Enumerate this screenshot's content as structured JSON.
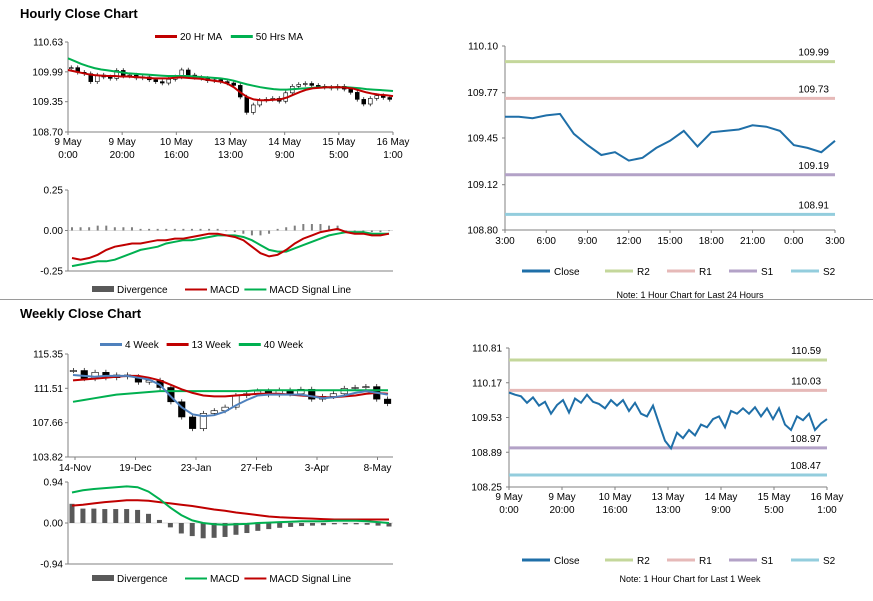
{
  "sections": {
    "hourly_title": "Hourly Close Chart",
    "weekly_title": "Weekly Close Chart"
  },
  "colors": {
    "ma_short": "#c00000",
    "ma_long": "#00b050",
    "ma_4wk": "#4f81bd",
    "close": "#1f6fa8",
    "r2": "#c4d79b",
    "r1": "#e6b9b8",
    "s1": "#b3a2c7",
    "s2": "#93cddd",
    "macd_red": "#c00000",
    "macd_green": "#00b050",
    "divergence": "#595959"
  },
  "chart_data": [
    {
      "id": "hourly_price",
      "type": "candlestick",
      "title": "Hourly Close Chart",
      "ylim": [
        108.7,
        110.63
      ],
      "yticks": [
        "110.63",
        "109.99",
        "109.35",
        "108.70"
      ],
      "xticks": [
        [
          "9 May",
          "0:00"
        ],
        [
          "9 May",
          "20:00"
        ],
        [
          "10 May",
          "16:00"
        ],
        [
          "13 May",
          "13:00"
        ],
        [
          "14 May",
          "9:00"
        ],
        [
          "15 May",
          "5:00"
        ],
        [
          "16 May",
          "1:00"
        ]
      ],
      "legend": [
        "20 Hr MA",
        "50 Hrs MA"
      ],
      "close": [
        110.08,
        109.98,
        109.95,
        109.78,
        109.92,
        109.88,
        109.85,
        110.02,
        109.9,
        109.92,
        109.86,
        109.88,
        109.82,
        109.78,
        109.75,
        109.83,
        109.88,
        110.03,
        109.92,
        109.87,
        109.85,
        109.8,
        109.82,
        109.78,
        109.75,
        109.7,
        109.45,
        109.12,
        109.28,
        109.38,
        109.4,
        109.42,
        109.36,
        109.54,
        109.68,
        109.72,
        109.74,
        109.7,
        109.68,
        109.66,
        109.64,
        109.68,
        109.62,
        109.55,
        109.4,
        109.3,
        109.42,
        109.48,
        109.44,
        109.4
      ],
      "ma20": [
        110.03,
        110.0,
        109.97,
        109.94,
        109.92,
        109.91,
        109.9,
        109.9,
        109.89,
        109.89,
        109.88,
        109.87,
        109.86,
        109.85,
        109.85,
        109.85,
        109.86,
        109.87,
        109.86,
        109.85,
        109.84,
        109.82,
        109.8,
        109.78,
        109.74,
        109.66,
        109.55,
        109.45,
        109.4,
        109.38,
        109.38,
        109.39,
        109.4,
        109.44,
        109.5,
        109.56,
        109.61,
        109.64,
        109.65,
        109.66,
        109.66,
        109.66,
        109.65,
        109.63,
        109.59,
        109.55,
        109.52,
        109.5,
        109.49,
        109.47
      ],
      "ma50": [
        110.28,
        110.22,
        110.16,
        110.11,
        110.07,
        110.04,
        110.02,
        110.0,
        109.98,
        109.96,
        109.95,
        109.94,
        109.93,
        109.92,
        109.91,
        109.9,
        109.9,
        109.9,
        109.9,
        109.89,
        109.88,
        109.87,
        109.86,
        109.85,
        109.83,
        109.8,
        109.76,
        109.72,
        109.69,
        109.66,
        109.64,
        109.62,
        109.61,
        109.61,
        109.62,
        109.63,
        109.64,
        109.65,
        109.66,
        109.66,
        109.66,
        109.66,
        109.66,
        109.65,
        109.64,
        109.62,
        109.61,
        109.6,
        109.59,
        109.58
      ]
    },
    {
      "id": "hourly_macd",
      "type": "macd",
      "ylim": [
        -0.25,
        0.25
      ],
      "yticks": [
        "0.25",
        "0.00",
        "-0.25"
      ],
      "legend": [
        "Divergence",
        "MACD",
        "MACD Signal Line"
      ],
      "macd": [
        -0.17,
        -0.18,
        -0.17,
        -0.15,
        -0.12,
        -0.1,
        -0.09,
        -0.08,
        -0.08,
        -0.07,
        -0.06,
        -0.06,
        -0.05,
        -0.05,
        -0.04,
        -0.03,
        -0.02,
        -0.02,
        -0.03,
        -0.04,
        -0.06,
        -0.1,
        -0.14,
        -0.16,
        -0.15,
        -0.12,
        -0.08,
        -0.05,
        -0.03,
        -0.01,
        0.0,
        0.01,
        -0.01,
        -0.02,
        -0.02,
        -0.03,
        -0.03,
        -0.02
      ],
      "signal": [
        -0.22,
        -0.21,
        -0.2,
        -0.19,
        -0.19,
        -0.18,
        -0.16,
        -0.14,
        -0.12,
        -0.11,
        -0.1,
        -0.08,
        -0.07,
        -0.06,
        -0.06,
        -0.05,
        -0.04,
        -0.03,
        -0.03,
        -0.03,
        -0.04,
        -0.06,
        -0.09,
        -0.12,
        -0.13,
        -0.13,
        -0.11,
        -0.09,
        -0.07,
        -0.05,
        -0.03,
        -0.02,
        -0.01,
        -0.01,
        -0.01,
        -0.02,
        -0.02,
        -0.02
      ],
      "divergence": [
        0.02,
        0.02,
        0.02,
        0.03,
        0.03,
        0.02,
        0.02,
        0.02,
        0.01,
        0.01,
        0.01,
        0.01,
        0.01,
        0.01,
        0.01,
        0.01,
        0.01,
        0.01,
        0.0,
        -0.01,
        -0.02,
        -0.03,
        -0.03,
        -0.02,
        0.01,
        0.02,
        0.03,
        0.04,
        0.04,
        0.04,
        0.03,
        0.03,
        0.0,
        -0.01,
        -0.01,
        -0.01,
        -0.01,
        0.0
      ]
    },
    {
      "id": "hourly_levels",
      "type": "line",
      "ylim": [
        108.8,
        110.1
      ],
      "yticks": [
        "110.10",
        "109.77",
        "109.45",
        "109.12",
        "108.80"
      ],
      "xticks": [
        "3:00",
        "6:00",
        "9:00",
        "12:00",
        "15:00",
        "18:00",
        "21:00",
        "0:00",
        "3:00"
      ],
      "close": [
        109.6,
        109.6,
        109.59,
        109.61,
        109.62,
        109.48,
        109.4,
        109.33,
        109.35,
        109.29,
        109.31,
        109.38,
        109.43,
        109.5,
        109.39,
        109.49,
        109.5,
        109.51,
        109.54,
        109.53,
        109.5,
        109.4,
        109.38,
        109.35,
        109.43
      ],
      "levels": [
        {
          "name": "R2",
          "value": 109.99,
          "label": "109.99"
        },
        {
          "name": "R1",
          "value": 109.73,
          "label": "109.73"
        },
        {
          "name": "S1",
          "value": 109.19,
          "label": "109.19"
        },
        {
          "name": "S2",
          "value": 108.91,
          "label": "108.91"
        }
      ],
      "legend": [
        "Close",
        "R2",
        "R1",
        "S1",
        "S2"
      ],
      "note": "Note: 1 Hour Chart for Last 24 Hours"
    },
    {
      "id": "weekly_price",
      "type": "candlestick",
      "title": "Weekly Close Chart",
      "ylim": [
        103.82,
        115.35
      ],
      "yticks": [
        "115.35",
        "111.51",
        "107.66",
        "103.82"
      ],
      "xticks": [
        "14-Nov",
        "19-Dec",
        "23-Jan",
        "27-Feb",
        "3-Apr",
        "8-May"
      ],
      "legend": [
        "4 Week",
        "13 Week",
        "40 Week"
      ],
      "close": [
        113.5,
        112.6,
        113.3,
        112.7,
        113.0,
        112.8,
        112.2,
        112.4,
        111.6,
        110.0,
        108.3,
        107.0,
        108.7,
        109.0,
        109.4,
        110.7,
        110.9,
        111.2,
        110.8,
        111.3,
        110.9,
        111.4,
        110.3,
        110.6,
        110.9,
        111.5,
        111.6,
        111.7,
        110.3,
        109.8
      ],
      "ma4": [
        113.0,
        112.9,
        112.8,
        112.9,
        112.9,
        112.9,
        112.7,
        112.5,
        111.9,
        110.6,
        109.4,
        108.6,
        108.4,
        108.5,
        108.9,
        109.6,
        110.2,
        110.7,
        110.8,
        110.8,
        110.8,
        110.8,
        110.6,
        110.4,
        110.5,
        110.7,
        111.0,
        111.2,
        111.0,
        110.8
      ],
      "ma13": [
        112.4,
        112.5,
        112.6,
        112.7,
        112.8,
        112.9,
        112.9,
        112.7,
        112.4,
        111.9,
        111.4,
        111.0,
        110.7,
        110.6,
        110.6,
        110.7,
        110.8,
        110.9,
        110.9,
        110.9,
        110.8,
        110.7,
        110.6,
        110.5,
        110.5,
        110.6,
        110.7,
        110.9,
        111.0,
        110.9
      ],
      "ma40": [
        110.0,
        110.2,
        110.4,
        110.6,
        110.8,
        110.9,
        111.0,
        111.1,
        111.2,
        111.2,
        111.2,
        111.2,
        111.2,
        111.2,
        111.2,
        111.2,
        111.2,
        111.3,
        111.3,
        111.3,
        111.3,
        111.3,
        111.3,
        111.3,
        111.3,
        111.3,
        111.3,
        111.3,
        111.3,
        111.3
      ]
    },
    {
      "id": "weekly_macd",
      "type": "macd",
      "ylim": [
        -0.94,
        0.94
      ],
      "yticks": [
        "0.94",
        "0.00",
        "-0.94"
      ],
      "legend": [
        "Divergence",
        "MACD",
        "MACD Signal Line"
      ],
      "macd": [
        0.7,
        0.75,
        0.78,
        0.8,
        0.82,
        0.84,
        0.82,
        0.72,
        0.55,
        0.35,
        0.18,
        0.06,
        0.0,
        -0.03,
        -0.04,
        -0.03,
        -0.02,
        0.0,
        0.01,
        0.02,
        0.03,
        0.04,
        0.04,
        0.04,
        0.05,
        0.05,
        0.05,
        0.04,
        0.02,
        0.0
      ],
      "signal": [
        0.4,
        0.42,
        0.45,
        0.48,
        0.5,
        0.52,
        0.52,
        0.51,
        0.48,
        0.45,
        0.42,
        0.39,
        0.35,
        0.31,
        0.28,
        0.24,
        0.21,
        0.18,
        0.15,
        0.13,
        0.12,
        0.11,
        0.1,
        0.09,
        0.08,
        0.08,
        0.08,
        0.08,
        0.08,
        0.08
      ],
      "divergence": [
        0.44,
        0.33,
        0.33,
        0.32,
        0.32,
        0.32,
        0.3,
        0.21,
        0.07,
        -0.1,
        -0.24,
        -0.3,
        -0.35,
        -0.34,
        -0.32,
        -0.27,
        -0.23,
        -0.18,
        -0.14,
        -0.11,
        -0.09,
        -0.07,
        -0.06,
        -0.05,
        -0.03,
        -0.03,
        -0.03,
        -0.04,
        -0.06,
        -0.08
      ]
    },
    {
      "id": "weekly_levels",
      "type": "line",
      "ylim": [
        108.25,
        110.81
      ],
      "yticks": [
        "110.81",
        "110.17",
        "109.53",
        "108.89",
        "108.25"
      ],
      "xticks": [
        [
          "9 May",
          "0:00"
        ],
        [
          "9 May",
          "20:00"
        ],
        [
          "10 May",
          "16:00"
        ],
        [
          "13 May",
          "13:00"
        ],
        [
          "14 May",
          "9:00"
        ],
        [
          "15 May",
          "5:00"
        ],
        [
          "16 May",
          "1:00"
        ]
      ],
      "close": [
        109.99,
        109.95,
        109.92,
        109.8,
        109.9,
        109.75,
        109.82,
        109.6,
        109.76,
        109.85,
        109.62,
        109.88,
        109.8,
        109.95,
        109.82,
        109.78,
        109.7,
        109.85,
        109.75,
        109.85,
        109.65,
        109.8,
        109.6,
        109.55,
        109.75,
        109.42,
        109.1,
        108.96,
        109.25,
        109.15,
        109.3,
        109.2,
        109.4,
        109.35,
        109.5,
        109.55,
        109.35,
        109.65,
        109.6,
        109.7,
        109.6,
        109.72,
        109.55,
        109.7,
        109.5,
        109.7,
        109.4,
        109.3,
        109.55,
        109.48,
        109.6,
        109.3,
        109.42,
        109.5
      ],
      "levels": [
        {
          "name": "R2",
          "value": 110.59,
          "label": "110.59"
        },
        {
          "name": "R1",
          "value": 110.03,
          "label": "110.03"
        },
        {
          "name": "S1",
          "value": 108.97,
          "label": "108.97"
        },
        {
          "name": "S2",
          "value": 108.47,
          "label": "108.47"
        }
      ],
      "legend": [
        "Close",
        "R2",
        "R1",
        "S1",
        "S2"
      ],
      "note": "Note: 1 Hour Chart for Last 1 Week"
    }
  ]
}
